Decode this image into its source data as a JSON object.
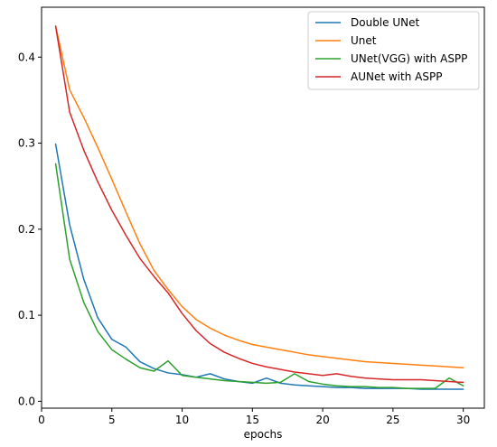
{
  "chart_data": {
    "type": "line",
    "title": "",
    "xlabel": "epochs",
    "ylabel": "",
    "xlim": [
      0,
      31.5
    ],
    "ylim": [
      -0.008,
      0.458
    ],
    "xticks": [
      0,
      5,
      10,
      15,
      20,
      25,
      30
    ],
    "yticks": [
      0.0,
      0.1,
      0.2,
      0.3,
      0.4
    ],
    "ytick_labels": [
      "0.0",
      "0.1",
      "0.2",
      "0.3",
      "0.4"
    ],
    "grid": false,
    "legend_position": "top-right",
    "x": [
      1,
      2,
      3,
      4,
      5,
      6,
      7,
      8,
      9,
      10,
      11,
      12,
      13,
      14,
      15,
      16,
      17,
      18,
      19,
      20,
      21,
      22,
      23,
      24,
      25,
      26,
      27,
      28,
      29,
      30
    ],
    "series": [
      {
        "name": "Double UNet",
        "color": "#1f77b4",
        "values": [
          0.299,
          0.205,
          0.142,
          0.097,
          0.072,
          0.063,
          0.046,
          0.038,
          0.033,
          0.031,
          0.028,
          0.032,
          0.026,
          0.023,
          0.021,
          0.027,
          0.021,
          0.019,
          0.018,
          0.017,
          0.016,
          0.016,
          0.015,
          0.015,
          0.015,
          0.015,
          0.014,
          0.014,
          0.014,
          0.014
        ]
      },
      {
        "name": "Unet",
        "color": "#ff7f0e",
        "values": [
          0.436,
          0.362,
          0.33,
          0.295,
          0.258,
          0.22,
          0.183,
          0.152,
          0.13,
          0.11,
          0.095,
          0.085,
          0.077,
          0.071,
          0.066,
          0.063,
          0.06,
          0.057,
          0.054,
          0.052,
          0.05,
          0.048,
          0.046,
          0.045,
          0.044,
          0.043,
          0.042,
          0.041,
          0.04,
          0.039
        ]
      },
      {
        "name": "UNet(VGG) with ASPP",
        "color": "#2ca02c",
        "values": [
          0.276,
          0.165,
          0.115,
          0.081,
          0.06,
          0.049,
          0.039,
          0.035,
          0.047,
          0.03,
          0.028,
          0.026,
          0.024,
          0.023,
          0.022,
          0.021,
          0.022,
          0.032,
          0.023,
          0.02,
          0.018,
          0.017,
          0.017,
          0.016,
          0.016,
          0.015,
          0.015,
          0.015,
          0.027,
          0.018
        ]
      },
      {
        "name": "AUNet with ASPP",
        "color": "#d62728",
        "values": [
          0.436,
          0.336,
          0.292,
          0.255,
          0.222,
          0.193,
          0.166,
          0.145,
          0.126,
          0.102,
          0.082,
          0.067,
          0.057,
          0.05,
          0.044,
          0.04,
          0.037,
          0.034,
          0.032,
          0.03,
          0.032,
          0.029,
          0.027,
          0.026,
          0.025,
          0.025,
          0.025,
          0.024,
          0.023,
          0.022
        ]
      }
    ]
  }
}
